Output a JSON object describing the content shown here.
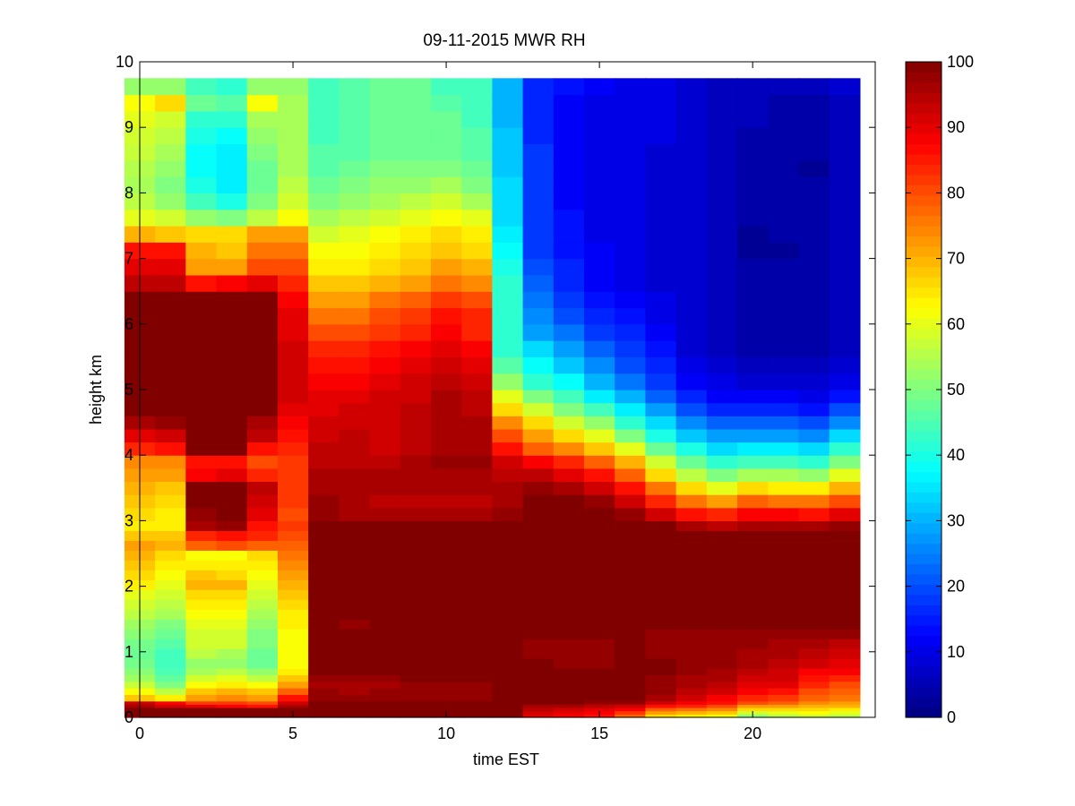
{
  "chart_data": {
    "type": "heatmap",
    "title": "09-11-2015 MWR RH",
    "xlabel": "time EST",
    "ylabel": "height km",
    "xlim": [
      0,
      24
    ],
    "ylim": [
      0,
      10
    ],
    "x_ticks": [
      0,
      5,
      10,
      15,
      20
    ],
    "y_ticks": [
      0,
      1,
      2,
      3,
      4,
      5,
      6,
      7,
      8,
      9,
      10
    ],
    "colorbar": {
      "colormap": "jet",
      "range": [
        0,
        100
      ],
      "ticks": [
        0,
        10,
        20,
        30,
        40,
        50,
        60,
        70,
        80,
        90,
        100
      ]
    },
    "time_bins": [
      0,
      1,
      2,
      3,
      4,
      5,
      6,
      7,
      8,
      9,
      10,
      11,
      12,
      13,
      14,
      15,
      16,
      17,
      18,
      19,
      20,
      21,
      22,
      23
    ],
    "height_edges": [
      0,
      0.05,
      0.1,
      0.15,
      0.2,
      0.25,
      0.35,
      0.45,
      0.55,
      0.65,
      0.75,
      0.9,
      1.05,
      1.2,
      1.35,
      1.5,
      1.65,
      1.8,
      1.95,
      2.1,
      2.25,
      2.4,
      2.55,
      2.7,
      2.85,
      3.0,
      3.2,
      3.4,
      3.6,
      3.8,
      4.0,
      4.2,
      4.4,
      4.6,
      4.8,
      5.0,
      5.25,
      5.5,
      5.75,
      6.0,
      6.25,
      6.5,
      6.75,
      7.0,
      7.25,
      7.5,
      7.75,
      8.0,
      8.25,
      8.5,
      8.75,
      9.0,
      9.25,
      9.5,
      9.75
    ],
    "rh_profiles": [
      [
        100,
        100,
        100,
        96,
        93,
        68,
        62,
        57,
        53,
        51,
        49,
        48,
        49,
        51,
        53,
        56,
        58,
        60,
        64,
        66,
        68,
        70,
        72,
        68,
        64,
        66,
        68,
        70,
        72,
        74,
        84,
        90,
        96,
        100,
        100,
        100,
        100,
        100,
        100,
        100,
        100,
        94,
        90,
        86,
        70,
        60,
        56,
        54,
        55,
        57,
        58,
        60,
        62,
        52
      ],
      [
        100,
        100,
        100,
        92,
        88,
        64,
        56,
        50,
        47,
        45,
        44,
        44,
        46,
        48,
        50,
        54,
        56,
        58,
        60,
        62,
        64,
        66,
        70,
        68,
        64,
        64,
        66,
        68,
        72,
        74,
        86,
        92,
        98,
        100,
        100,
        100,
        100,
        100,
        100,
        100,
        100,
        94,
        90,
        86,
        68,
        58,
        52,
        50,
        52,
        54,
        56,
        58,
        66,
        52
      ],
      [
        100,
        100,
        100,
        90,
        82,
        72,
        68,
        62,
        58,
        54,
        52,
        56,
        58,
        58,
        60,
        62,
        64,
        66,
        70,
        68,
        64,
        62,
        78,
        84,
        96,
        98,
        100,
        100,
        88,
        86,
        100,
        100,
        100,
        100,
        100,
        100,
        100,
        100,
        100,
        100,
        100,
        86,
        72,
        70,
        66,
        52,
        44,
        40,
        38,
        38,
        40,
        42,
        48,
        44
      ],
      [
        100,
        100,
        100,
        88,
        82,
        74,
        70,
        64,
        60,
        56,
        52,
        54,
        58,
        58,
        60,
        62,
        64,
        66,
        70,
        66,
        64,
        62,
        80,
        86,
        98,
        100,
        100,
        100,
        90,
        86,
        100,
        100,
        100,
        100,
        100,
        100,
        100,
        100,
        100,
        100,
        100,
        88,
        72,
        68,
        66,
        50,
        40,
        36,
        36,
        36,
        38,
        42,
        46,
        42
      ],
      [
        100,
        100,
        100,
        86,
        80,
        72,
        68,
        62,
        56,
        52,
        48,
        48,
        50,
        50,
        52,
        54,
        56,
        58,
        60,
        62,
        64,
        66,
        78,
        84,
        86,
        90,
        92,
        94,
        84,
        80,
        86,
        94,
        96,
        100,
        100,
        100,
        100,
        100,
        100,
        100,
        100,
        90,
        80,
        76,
        72,
        56,
        50,
        48,
        48,
        50,
        52,
        54,
        62,
        52
      ],
      [
        100,
        100,
        100,
        96,
        92,
        86,
        78,
        72,
        68,
        64,
        62,
        62,
        62,
        62,
        64,
        64,
        66,
        68,
        70,
        72,
        74,
        76,
        78,
        80,
        82,
        80,
        82,
        82,
        82,
        82,
        84,
        86,
        88,
        90,
        92,
        92,
        92,
        92,
        90,
        90,
        88,
        84,
        80,
        76,
        72,
        62,
        58,
        56,
        54,
        54,
        54,
        54,
        54,
        52
      ],
      [
        100,
        100,
        100,
        100,
        100,
        98,
        98,
        96,
        98,
        100,
        100,
        100,
        100,
        100,
        100,
        100,
        100,
        100,
        100,
        100,
        100,
        100,
        100,
        100,
        100,
        98,
        98,
        96,
        96,
        94,
        94,
        92,
        92,
        90,
        90,
        88,
        86,
        84,
        80,
        76,
        72,
        68,
        64,
        62,
        58,
        54,
        50,
        48,
        46,
        46,
        44,
        44,
        44,
        44
      ],
      [
        100,
        100,
        100,
        100,
        100,
        98,
        96,
        96,
        98,
        100,
        100,
        100,
        100,
        100,
        98,
        100,
        100,
        100,
        100,
        100,
        100,
        100,
        100,
        100,
        100,
        96,
        96,
        96,
        96,
        94,
        94,
        94,
        92,
        92,
        90,
        88,
        86,
        84,
        80,
        76,
        72,
        68,
        64,
        62,
        60,
        56,
        52,
        50,
        48,
        46,
        46,
        46,
        46,
        46
      ],
      [
        100,
        100,
        100,
        100,
        100,
        98,
        98,
        96,
        98,
        100,
        100,
        100,
        100,
        100,
        100,
        100,
        100,
        100,
        100,
        100,
        100,
        100,
        100,
        100,
        100,
        96,
        94,
        96,
        96,
        94,
        92,
        92,
        92,
        92,
        92,
        90,
        88,
        86,
        82,
        80,
        76,
        70,
        66,
        64,
        62,
        58,
        54,
        52,
        50,
        48,
        48,
        48,
        48,
        48
      ],
      [
        100,
        100,
        100,
        100,
        100,
        98,
        98,
        98,
        100,
        100,
        100,
        100,
        100,
        100,
        100,
        100,
        100,
        100,
        100,
        100,
        100,
        100,
        100,
        100,
        100,
        96,
        94,
        96,
        96,
        96,
        94,
        94,
        94,
        94,
        92,
        92,
        90,
        88,
        84,
        82,
        78,
        72,
        68,
        66,
        64,
        60,
        56,
        52,
        50,
        48,
        48,
        48,
        48,
        48
      ],
      [
        100,
        100,
        100,
        100,
        100,
        98,
        98,
        98,
        100,
        100,
        100,
        100,
        100,
        100,
        100,
        100,
        100,
        100,
        100,
        100,
        100,
        100,
        100,
        100,
        100,
        96,
        94,
        96,
        96,
        98,
        96,
        96,
        96,
        96,
        96,
        94,
        92,
        90,
        88,
        86,
        82,
        76,
        72,
        68,
        66,
        62,
        58,
        54,
        50,
        48,
        48,
        48,
        46,
        44
      ],
      [
        100,
        100,
        100,
        100,
        100,
        98,
        98,
        98,
        100,
        100,
        100,
        100,
        100,
        100,
        100,
        100,
        100,
        100,
        100,
        100,
        100,
        100,
        100,
        100,
        100,
        96,
        94,
        96,
        96,
        98,
        96,
        96,
        96,
        94,
        94,
        92,
        90,
        88,
        84,
        84,
        80,
        74,
        70,
        66,
        64,
        60,
        54,
        50,
        48,
        46,
        46,
        44,
        44,
        44
      ],
      [
        100,
        100,
        100,
        100,
        100,
        100,
        100,
        100,
        100,
        100,
        100,
        100,
        100,
        100,
        100,
        100,
        100,
        100,
        100,
        100,
        100,
        100,
        100,
        100,
        100,
        98,
        96,
        96,
        94,
        92,
        86,
        80,
        74,
        66,
        60,
        52,
        46,
        42,
        42,
        42,
        42,
        42,
        40,
        38,
        36,
        34,
        34,
        34,
        32,
        32,
        32,
        30,
        30,
        30
      ],
      [
        90,
        92,
        94,
        96,
        100,
        100,
        100,
        100,
        100,
        100,
        100,
        98,
        98,
        100,
        100,
        100,
        100,
        100,
        100,
        100,
        100,
        100,
        100,
        100,
        100,
        100,
        100,
        98,
        94,
        88,
        78,
        72,
        66,
        58,
        50,
        42,
        38,
        34,
        28,
        26,
        24,
        22,
        20,
        18,
        18,
        18,
        18,
        18,
        18,
        18,
        16,
        16,
        16,
        16
      ],
      [
        88,
        90,
        92,
        96,
        100,
        100,
        100,
        100,
        100,
        100,
        98,
        98,
        98,
        100,
        100,
        100,
        100,
        100,
        100,
        100,
        100,
        100,
        100,
        100,
        100,
        100,
        100,
        96,
        90,
        84,
        74,
        66,
        58,
        50,
        44,
        38,
        32,
        28,
        24,
        20,
        18,
        16,
        16,
        14,
        14,
        14,
        12,
        12,
        12,
        12,
        12,
        12,
        12,
        14
      ],
      [
        86,
        88,
        90,
        94,
        98,
        100,
        100,
        100,
        100,
        100,
        98,
        98,
        98,
        100,
        100,
        100,
        100,
        100,
        100,
        100,
        100,
        100,
        100,
        100,
        100,
        100,
        98,
        92,
        86,
        78,
        68,
        60,
        52,
        44,
        36,
        30,
        26,
        22,
        18,
        16,
        14,
        12,
        12,
        12,
        10,
        10,
        10,
        10,
        10,
        10,
        10,
        10,
        10,
        12
      ],
      [
        78,
        82,
        88,
        92,
        98,
        100,
        100,
        100,
        100,
        100,
        100,
        100,
        100,
        100,
        100,
        100,
        100,
        100,
        100,
        100,
        100,
        100,
        100,
        100,
        100,
        98,
        92,
        86,
        78,
        70,
        60,
        50,
        42,
        36,
        30,
        24,
        20,
        18,
        16,
        14,
        12,
        10,
        10,
        10,
        10,
        10,
        10,
        10,
        10,
        10,
        10,
        10,
        10,
        10
      ],
      [
        66,
        72,
        78,
        86,
        92,
        96,
        98,
        98,
        98,
        100,
        100,
        98,
        98,
        98,
        100,
        100,
        100,
        100,
        100,
        100,
        100,
        100,
        100,
        100,
        100,
        92,
        84,
        76,
        66,
        58,
        48,
        40,
        34,
        28,
        22,
        18,
        16,
        14,
        12,
        10,
        10,
        8,
        8,
        8,
        8,
        8,
        8,
        8,
        8,
        8,
        10,
        10,
        10,
        10
      ],
      [
        64,
        70,
        76,
        84,
        88,
        92,
        94,
        96,
        96,
        98,
        98,
        98,
        98,
        98,
        100,
        100,
        100,
        100,
        100,
        100,
        100,
        100,
        100,
        100,
        96,
        86,
        76,
        66,
        56,
        48,
        40,
        32,
        26,
        20,
        16,
        12,
        10,
        8,
        8,
        8,
        8,
        8,
        8,
        8,
        8,
        8,
        8,
        8,
        8,
        8,
        8,
        8,
        8,
        8
      ],
      [
        62,
        68,
        74,
        80,
        86,
        88,
        92,
        94,
        96,
        96,
        98,
        98,
        98,
        98,
        100,
        100,
        100,
        100,
        100,
        100,
        100,
        100,
        100,
        100,
        94,
        84,
        72,
        60,
        50,
        42,
        34,
        28,
        22,
        16,
        12,
        10,
        8,
        6,
        6,
        6,
        6,
        6,
        6,
        6,
        6,
        6,
        6,
        6,
        6,
        6,
        6,
        6,
        6,
        6
      ],
      [
        52,
        58,
        66,
        72,
        80,
        84,
        88,
        90,
        92,
        94,
        96,
        96,
        98,
        98,
        100,
        100,
        100,
        100,
        100,
        100,
        100,
        100,
        100,
        100,
        96,
        88,
        78,
        66,
        54,
        44,
        36,
        28,
        22,
        16,
        12,
        8,
        6,
        4,
        4,
        4,
        4,
        4,
        4,
        2,
        2,
        4,
        4,
        4,
        4,
        4,
        4,
        6,
        6,
        6
      ],
      [
        56,
        60,
        66,
        72,
        78,
        82,
        86,
        90,
        92,
        92,
        94,
        96,
        96,
        98,
        100,
        100,
        100,
        100,
        100,
        100,
        100,
        100,
        100,
        100,
        96,
        88,
        76,
        64,
        54,
        44,
        36,
        28,
        22,
        16,
        12,
        8,
        6,
        4,
        4,
        4,
        4,
        4,
        4,
        2,
        4,
        4,
        4,
        4,
        4,
        4,
        4,
        4,
        4,
        6
      ],
      [
        58,
        62,
        66,
        70,
        74,
        78,
        80,
        84,
        86,
        88,
        92,
        94,
        96,
        98,
        100,
        100,
        100,
        100,
        100,
        100,
        100,
        100,
        100,
        100,
        96,
        86,
        76,
        64,
        52,
        42,
        34,
        26,
        20,
        14,
        10,
        8,
        6,
        4,
        4,
        4,
        4,
        4,
        4,
        4,
        4,
        4,
        4,
        4,
        2,
        4,
        4,
        4,
        4,
        6
      ],
      [
        56,
        60,
        64,
        70,
        72,
        76,
        78,
        80,
        84,
        88,
        90,
        92,
        94,
        98,
        100,
        100,
        100,
        100,
        100,
        100,
        100,
        100,
        100,
        100,
        98,
        90,
        80,
        70,
        60,
        50,
        42,
        34,
        26,
        20,
        14,
        10,
        8,
        6,
        6,
        6,
        6,
        6,
        6,
        6,
        6,
        6,
        6,
        6,
        6,
        6,
        6,
        6,
        6,
        8
      ]
    ]
  }
}
